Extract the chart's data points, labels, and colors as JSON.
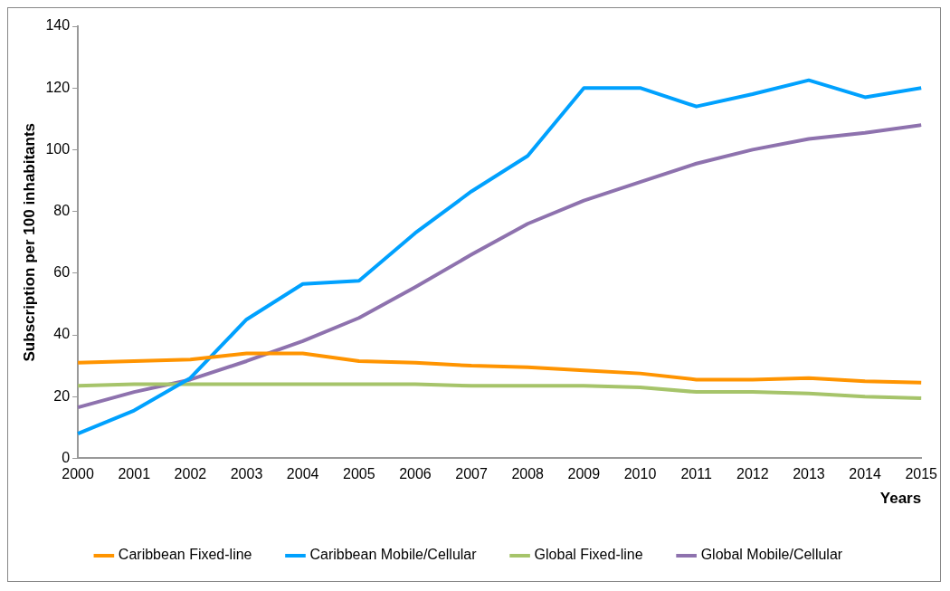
{
  "chart_data": {
    "type": "line",
    "xlabel": "Years",
    "ylabel": "Subscription per 100 inhabitants",
    "categories": [
      "2000",
      "2001",
      "2002",
      "2003",
      "2004",
      "2005",
      "2006",
      "2007",
      "2008",
      "2009",
      "2010",
      "2011",
      "2012",
      "2013",
      "2014",
      "2015"
    ],
    "ylim": [
      0,
      140
    ],
    "yticks": [
      0,
      20,
      40,
      60,
      80,
      100,
      120,
      140
    ],
    "grid": false,
    "legend": "bottom",
    "marker": "none",
    "line_style": "solid",
    "series": [
      {
        "name": "Caribbean Fixed-line",
        "color": "#ff9400",
        "values": [
          31,
          31.5,
          32,
          34,
          34,
          31.5,
          31,
          30,
          29.5,
          28.5,
          27.5,
          25.5,
          25.5,
          26,
          25,
          24.5
        ]
      },
      {
        "name": "Caribbean Mobile/Cellular",
        "color": "#00a1fe",
        "values": [
          8,
          15.5,
          26,
          45,
          56.5,
          57.5,
          73,
          86.5,
          98,
          120,
          120,
          114,
          118,
          122.5,
          117,
          120
        ]
      },
      {
        "name": "Global Fixed-line",
        "color": "#a6c46a",
        "values": [
          23.5,
          24,
          24,
          24,
          24,
          24,
          24,
          23.5,
          23.5,
          23.5,
          23,
          21.5,
          21.5,
          21,
          20,
          19.5
        ]
      },
      {
        "name": "Global Mobile/Cellular",
        "color": "#8e72ae",
        "values": [
          16.5,
          21.5,
          25.5,
          31.5,
          38,
          45.5,
          55.5,
          66,
          76,
          83.5,
          89.5,
          95.5,
          100,
          103.5,
          105.5,
          108
        ]
      }
    ]
  }
}
